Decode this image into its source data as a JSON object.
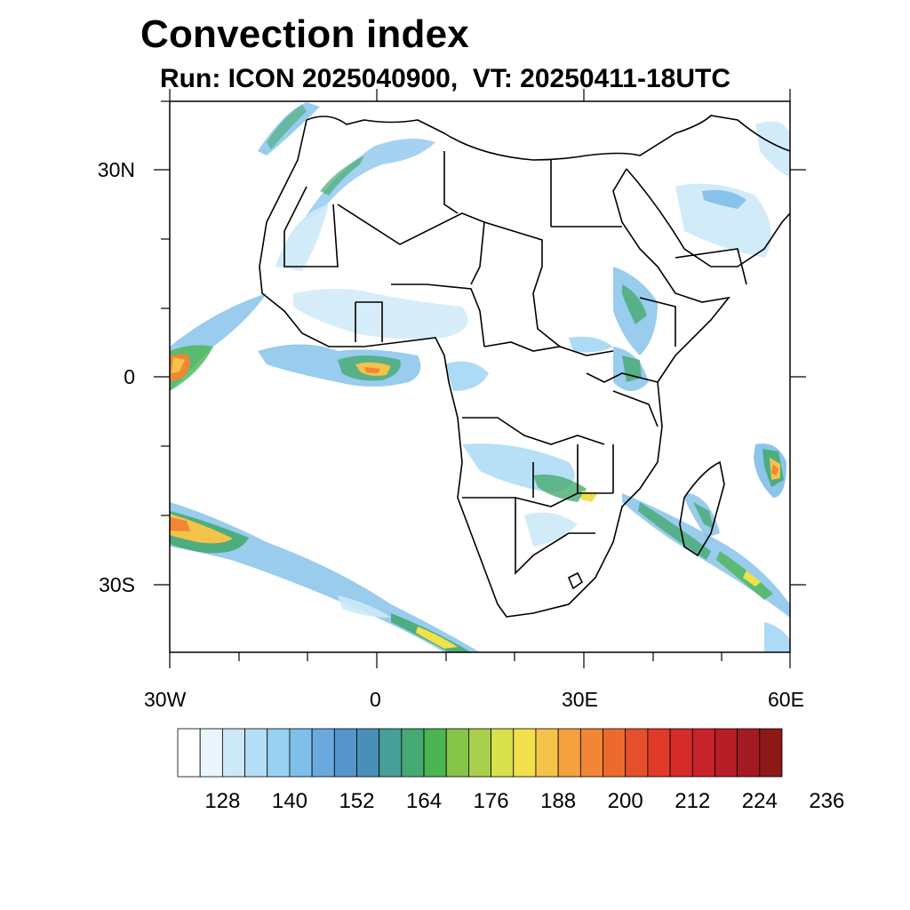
{
  "title": "Convection index",
  "subtitle": "Run: ICON 2025040900,  VT: 20250411-18UTC",
  "map": {
    "lon_range": [
      -30,
      60
    ],
    "lat_range": [
      -40,
      40
    ],
    "lon_ticks": [
      "30W",
      "0",
      "30E",
      "60E"
    ],
    "lat_ticks": [
      "30N",
      "0",
      "30S"
    ]
  },
  "colorbar": {
    "labels": [
      "128",
      "140",
      "152",
      "164",
      "176",
      "188",
      "200",
      "212",
      "224",
      "236"
    ],
    "colors": [
      "#ffffff",
      "#eaf6fc",
      "#cde9f8",
      "#b3def5",
      "#98d2f2",
      "#7fbfe9",
      "#6aa8de",
      "#5694cc",
      "#4a8fb8",
      "#469f98",
      "#45aa72",
      "#4ab552",
      "#86c44a",
      "#a9cf4c",
      "#d8e04c",
      "#f2e04c",
      "#f5c24a",
      "#f4a23e",
      "#f08636",
      "#ec6a2e",
      "#e54f2b",
      "#df3a2a",
      "#d52b2b",
      "#c8222b",
      "#b71d27",
      "#a41a22",
      "#8c1818"
    ]
  }
}
